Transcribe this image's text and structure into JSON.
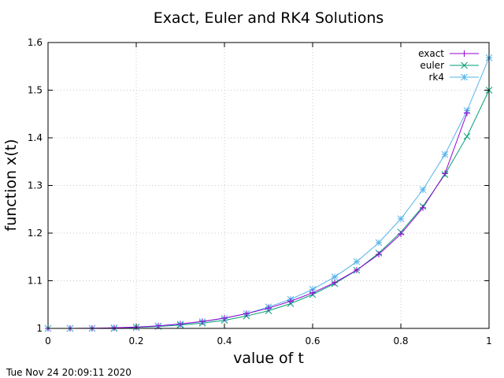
{
  "chart_data": {
    "type": "line",
    "title": "Exact, Euler and RK4 Solutions",
    "xlabel": "value of t",
    "ylabel": "function x(t)",
    "xlim": [
      0,
      1
    ],
    "ylim": [
      1,
      1.6
    ],
    "xticks": [
      "0",
      "0.2",
      "0.4",
      "0.6",
      "0.8",
      "1"
    ],
    "yticks": [
      "1",
      "1.1",
      "1.2",
      "1.3",
      "1.4",
      "1.5",
      "1.6"
    ],
    "grid": true,
    "legend_position": "top-right",
    "series": [
      {
        "name": "exact",
        "color": "#9400d3",
        "marker": "plus",
        "x": [
          0,
          0.05,
          0.1,
          0.15,
          0.2,
          0.25,
          0.3,
          0.35,
          0.4,
          0.45,
          0.5,
          0.55,
          0.6,
          0.65,
          0.7,
          0.75,
          0.8,
          0.85,
          0.9,
          0.95
        ],
        "y": [
          1.0,
          1.0,
          1.0003,
          1.0011,
          1.0027,
          1.0053,
          1.0092,
          1.0145,
          1.0216,
          1.0309,
          1.0425,
          1.057,
          1.0747,
          1.0962,
          1.1225,
          1.1553,
          1.198,
          1.2532,
          1.325,
          1.452
        ]
      },
      {
        "name": "euler",
        "color": "#009e73",
        "marker": "cross",
        "x": [
          0,
          0.05,
          0.1,
          0.15,
          0.2,
          0.25,
          0.3,
          0.35,
          0.4,
          0.45,
          0.5,
          0.55,
          0.6,
          0.65,
          0.7,
          0.75,
          0.8,
          0.85,
          0.9,
          0.95,
          1.0
        ],
        "y": [
          1.0,
          1.0,
          1.0,
          1.0,
          1.002,
          1.004,
          1.007,
          1.011,
          1.017,
          1.026,
          1.037,
          1.052,
          1.071,
          1.094,
          1.122,
          1.158,
          1.202,
          1.256,
          1.323,
          1.403,
          1.5
        ]
      },
      {
        "name": "rk4",
        "color": "#56b4e9",
        "marker": "star",
        "x": [
          0,
          0.05,
          0.1,
          0.15,
          0.2,
          0.25,
          0.3,
          0.35,
          0.4,
          0.45,
          0.5,
          0.55,
          0.6,
          0.65,
          0.7,
          0.75,
          0.8,
          0.85,
          0.9,
          0.95,
          1.0
        ],
        "y": [
          1.0,
          1.0,
          1.0,
          1.001,
          1.003,
          1.005,
          1.009,
          1.014,
          1.021,
          1.031,
          1.045,
          1.061,
          1.082,
          1.108,
          1.14,
          1.18,
          1.23,
          1.291,
          1.365,
          1.457,
          1.568
        ]
      }
    ]
  },
  "timestamp": "Tue Nov 24 20:09:11 2020"
}
